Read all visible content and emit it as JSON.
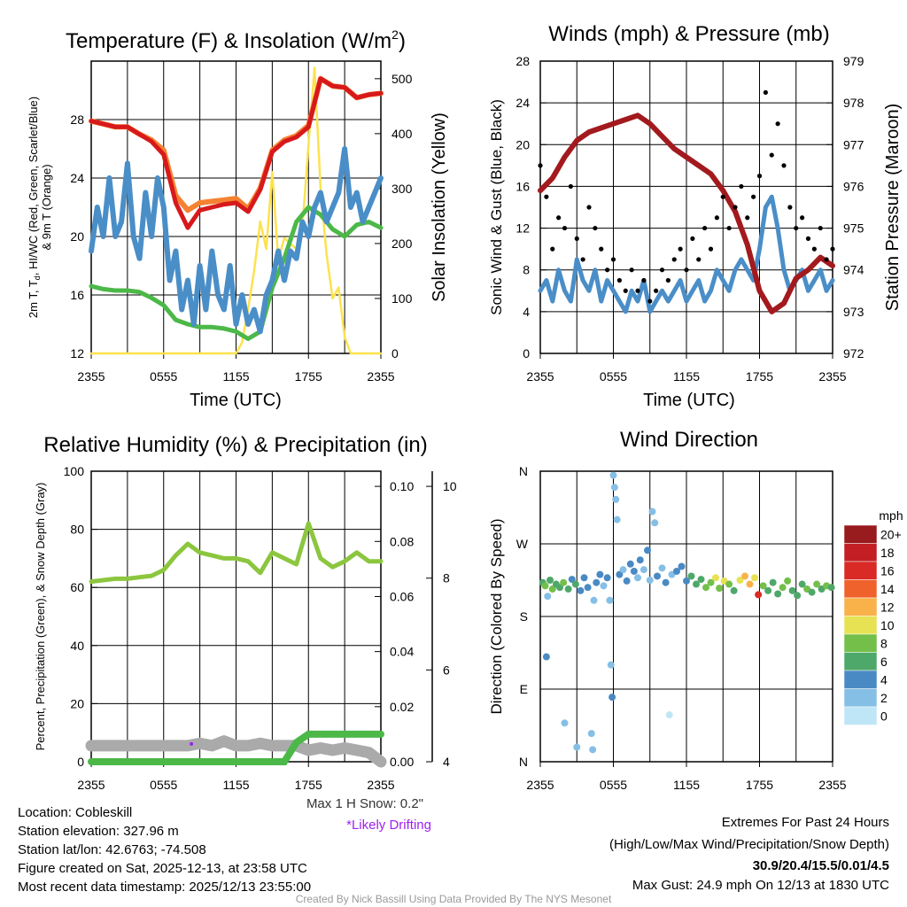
{
  "chart_data": [
    {
      "type": "line",
      "title_main": "Temperature (F) & Insolation (W/m",
      "title_sup": "2",
      "title_end": ")",
      "xlabel": "Time (UTC)",
      "ylabel_line1_a": "2m T, T",
      "ylabel_line1_sub": "d",
      "ylabel_line1_b": ", HI/WC (Red, Green, Scarlet/Blue)",
      "ylabel_line2": "& 9m T (Orange)",
      "y2label": "Solar Insolation (Yellow)",
      "xticks": [
        "2355",
        "0555",
        "1155",
        "1755",
        "2355"
      ],
      "xlim_hours": [
        0,
        24
      ],
      "ylim": [
        12,
        32
      ],
      "yticks": [
        12,
        16,
        20,
        24,
        28
      ],
      "y2lim": [
        0,
        532
      ],
      "y2ticks": [
        0,
        100,
        200,
        300,
        400,
        500
      ],
      "grid": true,
      "series": [
        {
          "name": "2m T",
          "color": "#d7191c",
          "step_hours": 1,
          "values": [
            27.9,
            27.7,
            27.5,
            27.5,
            27.0,
            26.5,
            25.6,
            22.3,
            20.6,
            21.8,
            22.0,
            22.2,
            22.3,
            21.7,
            23.2,
            25.8,
            26.5,
            26.8,
            27.5,
            30.8,
            30.3,
            30.2,
            29.5,
            29.7,
            29.8
          ]
        },
        {
          "name": "9m T",
          "color": "#f58231",
          "step_hours": 1,
          "values": [
            27.9,
            27.7,
            27.5,
            27.5,
            27.0,
            26.6,
            25.9,
            22.8,
            21.8,
            22.3,
            22.4,
            22.5,
            22.6,
            21.9,
            23.3,
            25.9,
            26.6,
            26.9,
            27.6,
            30.8,
            30.3,
            30.2,
            29.5,
            29.7,
            29.8
          ]
        },
        {
          "name": "Td",
          "color": "#4cb848",
          "step_hours": 1,
          "values": [
            16.6,
            16.4,
            16.3,
            16.3,
            16.2,
            15.8,
            15.3,
            14.3,
            14.0,
            13.8,
            13.8,
            13.7,
            13.5,
            13.0,
            13.5,
            16.5,
            18.5,
            21.0,
            22.0,
            21.5,
            20.5,
            20.0,
            20.8,
            21.0,
            20.6
          ]
        },
        {
          "name": "HI/WC",
          "color": "#4a8ec8",
          "step_hours": 0.5,
          "values": [
            19,
            22,
            20,
            24,
            20,
            21,
            25,
            20,
            18.5,
            23,
            20,
            24,
            22,
            17,
            19,
            15,
            17,
            14,
            18,
            15,
            19,
            16,
            15,
            18,
            14,
            16,
            14,
            15,
            13.5,
            16,
            17,
            19,
            17,
            19,
            18.5,
            21,
            20,
            22,
            23,
            21,
            22,
            23,
            26,
            22,
            23,
            21,
            22,
            23,
            24
          ]
        },
        {
          "name": "Solar Insolation",
          "axis": "right",
          "color": "#fde24f",
          "step_hours": 0.5,
          "values": [
            0,
            0,
            0,
            0,
            0,
            0,
            0,
            0,
            0,
            0,
            0,
            0,
            0,
            0,
            0,
            0,
            0,
            0,
            0,
            0,
            0,
            0,
            0,
            0,
            0,
            20,
            80,
            150,
            240,
            190,
            330,
            170,
            210,
            200,
            190,
            230,
            380,
            520,
            300,
            180,
            100,
            120,
            30,
            0,
            0,
            0,
            0,
            0,
            0
          ]
        }
      ]
    },
    {
      "type": "line",
      "title": "Winds (mph) & Pressure (mb)",
      "xlabel": "Time (UTC)",
      "ylabel": "Sonic Wind & Gust (Blue, Black)",
      "y2label": "Station Pressure (Maroon)",
      "xticks": [
        "2355",
        "0555",
        "1155",
        "1755",
        "2355"
      ],
      "ylim": [
        0,
        28
      ],
      "yticks": [
        0,
        4,
        8,
        12,
        16,
        20,
        24,
        28
      ],
      "y2lim": [
        972,
        979
      ],
      "y2ticks": [
        972,
        973,
        974,
        975,
        976,
        977,
        978,
        979
      ],
      "grid": true,
      "series": [
        {
          "name": "Sonic Wind",
          "color": "#4a8ec8",
          "step_hours": 0.5,
          "values": [
            6,
            7,
            5,
            8,
            6,
            5,
            9,
            7,
            6,
            8,
            5,
            7,
            6,
            5,
            4,
            6,
            5,
            7,
            4,
            5,
            6,
            5,
            6,
            7,
            5,
            6,
            7,
            5,
            6,
            8,
            7,
            6,
            8,
            9,
            8,
            7,
            10,
            14,
            15,
            12,
            8,
            6,
            7,
            8,
            6,
            7,
            8,
            6,
            7
          ]
        },
        {
          "name": "Gust",
          "kind": "scatter",
          "color": "#000000",
          "step_hours": 0.5,
          "values": [
            18,
            15,
            10,
            13,
            12,
            16,
            11,
            9,
            14,
            12,
            10,
            8,
            9,
            7,
            6,
            8,
            6,
            7,
            5,
            6,
            8,
            7,
            9,
            10,
            8,
            11,
            9,
            12,
            10,
            13,
            15,
            12,
            14,
            16,
            13,
            15,
            17,
            25,
            19,
            22,
            18,
            14,
            12,
            13,
            11,
            10,
            12,
            9,
            10
          ]
        },
        {
          "name": "Station Pressure",
          "axis": "right",
          "color": "#a31a1e",
          "step_hours": 1,
          "values": [
            975.9,
            976.2,
            976.7,
            977.1,
            977.3,
            977.4,
            977.5,
            977.6,
            977.7,
            977.5,
            977.2,
            976.9,
            976.7,
            976.5,
            976.3,
            975.9,
            975.4,
            974.6,
            973.5,
            973.0,
            973.2,
            973.8,
            974.0,
            974.3,
            974.1
          ]
        }
      ]
    },
    {
      "type": "line",
      "title": "Relative Humidity (%) & Precipitation (in)",
      "ylabel": "Percent, Precipitation (Green), & Snow Depth (Gray)",
      "xticks": [
        "2355",
        "0555",
        "1155",
        "1755",
        "2355"
      ],
      "ylim": [
        0,
        100
      ],
      "yticks": [
        0,
        20,
        40,
        60,
        80,
        100
      ],
      "y2lim": [
        0,
        0.1055
      ],
      "y2ticks": [
        "0.00",
        "0.02",
        "0.04",
        "0.06",
        "0.08",
        "0.10"
      ],
      "y3lim": [
        4,
        10.33
      ],
      "y3ticks": [
        4,
        6,
        8,
        10
      ],
      "grid": true,
      "series": [
        {
          "name": "Snow Depth",
          "axis": "y3",
          "color": "#aaaaaa",
          "step_hours": 1,
          "values": [
            4.35,
            4.35,
            4.35,
            4.35,
            4.35,
            4.35,
            4.35,
            4.35,
            4.35,
            4.4,
            4.35,
            4.45,
            4.35,
            4.35,
            4.4,
            4.35,
            4.35,
            4.35,
            4.25,
            4.3,
            4.25,
            4.3,
            4.25,
            4.2,
            4.0
          ]
        },
        {
          "name": "Relative Humidity",
          "color": "#8cc63f",
          "step_hours": 1,
          "values": [
            62,
            62.5,
            63,
            63,
            63.5,
            64,
            66,
            71,
            75,
            72,
            71,
            70,
            70,
            69,
            65,
            72,
            70,
            68,
            82,
            70,
            67,
            69,
            72,
            69,
            69
          ]
        },
        {
          "name": "Precipitation",
          "axis": "right",
          "color": "#4cb848",
          "step_hours": 1,
          "values": [
            0,
            0,
            0,
            0,
            0,
            0,
            0,
            0,
            0,
            0,
            0,
            0,
            0,
            0,
            0,
            0,
            0,
            0.007,
            0.01,
            0.01,
            0.01,
            0.01,
            0.01,
            0.01,
            0.01
          ]
        }
      ],
      "drifting_marker": {
        "hour": 8.3,
        "snow_depth": 4.35,
        "color": "#a020f0"
      },
      "snow_note": "Max 1 H Snow: 0.2\"",
      "drift_note": "*Likely Drifting"
    },
    {
      "type": "scatter",
      "title": "Wind Direction",
      "ylabel": "Direction (Colored By Speed)",
      "xticks": [
        "2355",
        "0555",
        "1155",
        "1755",
        "2355"
      ],
      "ylim": [
        0,
        360
      ],
      "yticks": [
        {
          "deg": 0,
          "label": "N"
        },
        {
          "deg": 90,
          "label": "E"
        },
        {
          "deg": 180,
          "label": "S"
        },
        {
          "deg": 270,
          "label": "W"
        },
        {
          "deg": 360,
          "label": "N"
        }
      ],
      "grid": true,
      "points_hour_deg_mph": [
        [
          0.2,
          222,
          7
        ],
        [
          0.4,
          218,
          9
        ],
        [
          0.5,
          130,
          4
        ],
        [
          0.6,
          205,
          3
        ],
        [
          0.8,
          225,
          6
        ],
        [
          1.0,
          214,
          8
        ],
        [
          1.3,
          220,
          7
        ],
        [
          1.6,
          216,
          6
        ],
        [
          1.9,
          222,
          8
        ],
        [
          2.0,
          48,
          3
        ],
        [
          2.3,
          214,
          6
        ],
        [
          2.6,
          226,
          5
        ],
        [
          2.9,
          220,
          7
        ],
        [
          3.0,
          18,
          3
        ],
        [
          3.3,
          212,
          4
        ],
        [
          3.6,
          228,
          5
        ],
        [
          3.9,
          216,
          5
        ],
        [
          4.2,
          35,
          3
        ],
        [
          4.3,
          15,
          3
        ],
        [
          4.4,
          200,
          3
        ],
        [
          4.6,
          222,
          4
        ],
        [
          4.9,
          232,
          4
        ],
        [
          5.2,
          218,
          3
        ],
        [
          5.5,
          228,
          4
        ],
        [
          5.7,
          200,
          2
        ],
        [
          5.8,
          120,
          3
        ],
        [
          5.9,
          80,
          4
        ],
        [
          6.0,
          355,
          2
        ],
        [
          6.1,
          340,
          2
        ],
        [
          6.2,
          325,
          2
        ],
        [
          6.3,
          300,
          2
        ],
        [
          6.5,
          232,
          4
        ],
        [
          6.8,
          238,
          3
        ],
        [
          7.1,
          224,
          4
        ],
        [
          7.4,
          245,
          4
        ],
        [
          7.7,
          236,
          4
        ],
        [
          8.0,
          228,
          3
        ],
        [
          8.2,
          250,
          4
        ],
        [
          8.5,
          238,
          3
        ],
        [
          8.8,
          262,
          4
        ],
        [
          9.0,
          225,
          2
        ],
        [
          9.2,
          310,
          2
        ],
        [
          9.4,
          296,
          2
        ],
        [
          9.6,
          230,
          4
        ],
        [
          10.0,
          240,
          3
        ],
        [
          10.3,
          222,
          4
        ],
        [
          10.6,
          58,
          1
        ],
        [
          10.8,
          232,
          3
        ],
        [
          11.2,
          236,
          4
        ],
        [
          11.6,
          242,
          4
        ],
        [
          12.0,
          224,
          5
        ],
        [
          12.4,
          230,
          7
        ],
        [
          12.8,
          220,
          6
        ],
        [
          13.2,
          226,
          7
        ],
        [
          13.6,
          216,
          8
        ],
        [
          14.0,
          222,
          9
        ],
        [
          14.4,
          228,
          10
        ],
        [
          14.7,
          215,
          8
        ],
        [
          15.1,
          224,
          11
        ],
        [
          15.5,
          220,
          9
        ],
        [
          15.9,
          212,
          7
        ],
        [
          16.4,
          225,
          10
        ],
        [
          16.8,
          230,
          12
        ],
        [
          17.2,
          220,
          13
        ],
        [
          17.6,
          228,
          11
        ],
        [
          17.9,
          207,
          17
        ],
        [
          18.3,
          218,
          9
        ],
        [
          18.7,
          212,
          7
        ],
        [
          19.1,
          222,
          6
        ],
        [
          19.5,
          208,
          7
        ],
        [
          19.9,
          216,
          8
        ],
        [
          20.3,
          224,
          9
        ],
        [
          20.7,
          212,
          7
        ],
        [
          21.1,
          206,
          6
        ],
        [
          21.5,
          220,
          7
        ],
        [
          21.9,
          214,
          8
        ],
        [
          22.3,
          210,
          7
        ],
        [
          22.7,
          220,
          8
        ],
        [
          23.1,
          214,
          7
        ],
        [
          23.5,
          218,
          9
        ],
        [
          23.9,
          216,
          7
        ]
      ],
      "colorbar": {
        "title": "mph",
        "labels": [
          "0",
          "2",
          "4",
          "6",
          "8",
          "10",
          "12",
          "14",
          "16",
          "18",
          "20+"
        ],
        "colors": [
          "#bfe6f7",
          "#86bfe5",
          "#4a8ac4",
          "#4ea86a",
          "#74bf4a",
          "#e6e253",
          "#f9b24a",
          "#f0622c",
          "#d92a26",
          "#c31e23",
          "#981b1e"
        ]
      }
    }
  ],
  "station_info": {
    "location": "Location: Cobleskill",
    "elevation": "Station elevation: 327.96 m",
    "latlon": "Station lat/lon: 42.6763; -74.508",
    "created": "Figure created on Sat, 2025-12-13, at 23:58 UTC",
    "recent": "Most recent data timestamp: 2025/12/13 23:55:00"
  },
  "extremes": {
    "title": "Extremes For Past 24 Hours",
    "subtitle": "(High/Low/Max Wind/Precipitation/Snow Depth)",
    "values": "30.9/20.4/15.5/0.01/4.5",
    "values_color": "#d7191c",
    "max_gust": "Max Gust: 24.9 mph On 12/13 at 1830 UTC"
  },
  "credit": "Created By Nick Bassill Using Data Provided By The NYS Mesonet"
}
